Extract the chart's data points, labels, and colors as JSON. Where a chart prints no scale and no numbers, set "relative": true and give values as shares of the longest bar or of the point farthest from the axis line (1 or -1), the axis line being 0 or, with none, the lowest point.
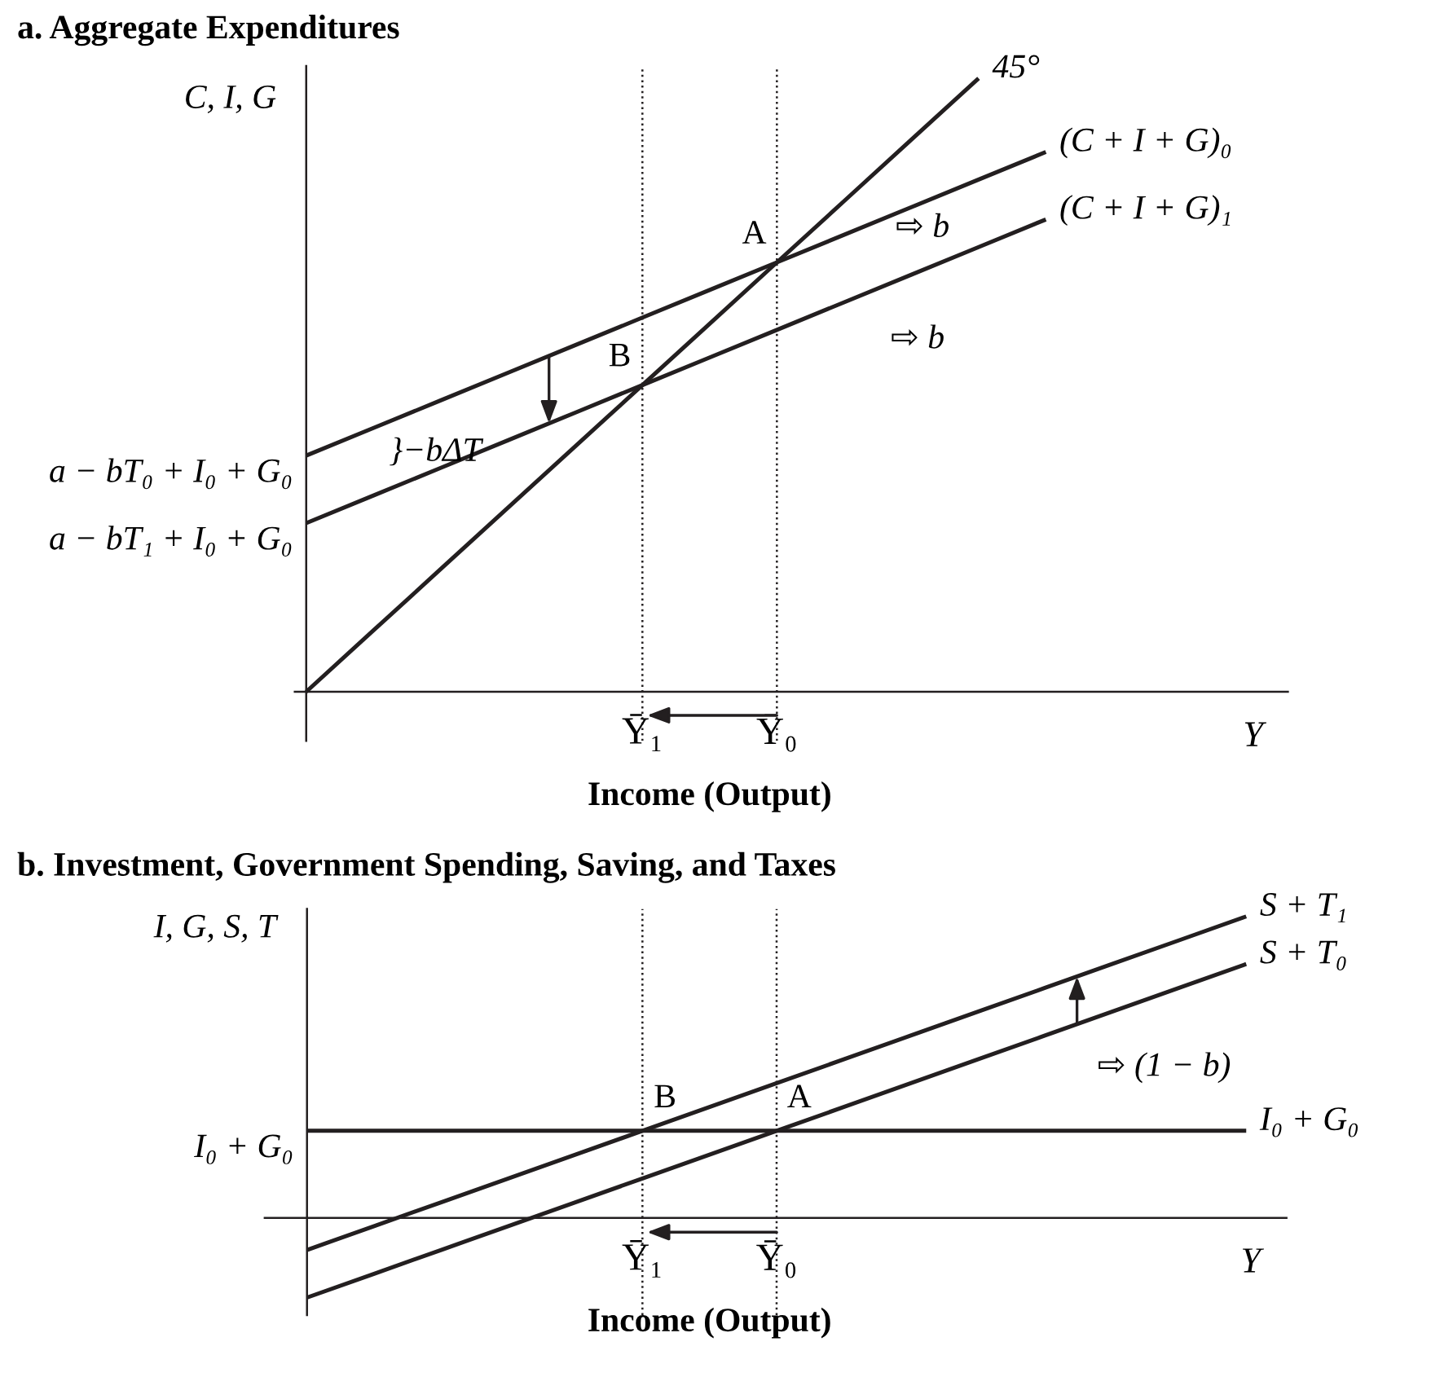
{
  "chart_data": [
    {
      "type": "line",
      "title": "a. Aggregate Expenditures",
      "ylabel": "C, I, G",
      "xlabel": "Income (Output)",
      "relative": true,
      "categories": [
        null,
        null,
        null,
        null,
        null,
        "Ȳ₁",
        null,
        "Ȳ₀",
        null,
        null,
        null,
        null,
        null,
        null,
        null
      ],
      "series": [
        {
          "name": "45°",
          "color": "#231f20",
          "values": [
            0,
            0.1,
            0.2,
            0.3,
            0.4,
            0.5,
            0.6,
            0.7,
            0.8,
            0.9,
            1.0,
            null,
            null,
            null,
            null
          ]
        },
        {
          "name": "(C + I + G)₀",
          "color": "#231f20",
          "values": [
            0.385,
            0.43,
            0.475,
            0.52,
            0.565,
            0.61,
            0.655,
            0.7,
            0.745,
            0.79,
            0.835,
            0.88,
            null,
            null,
            null
          ]
        },
        {
          "name": "(C + I + G)₁",
          "color": "#231f20",
          "values": [
            0.275,
            0.32,
            0.365,
            0.41,
            0.455,
            0.5,
            0.545,
            0.59,
            0.635,
            0.68,
            0.725,
            0.77,
            null,
            null,
            null
          ]
        }
      ],
      "ref_lines": [
        {
          "axis": "x",
          "value": "Ȳ₁",
          "color": "#231f20",
          "line_style": "dotted"
        },
        {
          "axis": "x",
          "value": "Ȳ₀",
          "color": "#231f20",
          "line_style": "dotted"
        }
      ],
      "annotations": [
        "Y",
        "}−bΔT",
        "⇨ b",
        "⇨ b",
        "a − bT₀ + I₀ + G₀",
        "a − bT₁ + I₀ + G₀",
        {
          "text": "A",
          "x": "Ȳ₀",
          "y": 0.7
        },
        {
          "text": "B",
          "x": "Ȳ₁",
          "y": 0.5
        }
      ]
    },
    {
      "type": "line",
      "title": "b. Investment, Government Spending, Saving, and Taxes",
      "ylabel": "I, G, S, T",
      "xlabel": "Income (Output)",
      "relative": true,
      "categories": [
        null,
        null,
        null,
        null,
        null,
        "Ȳ₁",
        null,
        "Ȳ₀",
        null,
        null,
        null,
        null,
        null,
        null,
        null
      ],
      "series": [
        {
          "name": "S + T₁",
          "color": "#231f20",
          "values": [
            -0.106,
            -0.027,
            0.052,
            0.131,
            0.21,
            0.289,
            0.368,
            0.447,
            0.526,
            0.605,
            0.684,
            0.763,
            0.842,
            0.921,
            1.0
          ]
        },
        {
          "name": "S + T₀",
          "color": "#231f20",
          "values": [
            -0.264,
            -0.185,
            -0.106,
            -0.027,
            0.052,
            0.131,
            0.21,
            0.289,
            0.368,
            0.447,
            0.526,
            0.605,
            0.684,
            0.763,
            0.842
          ]
        },
        {
          "name": "I₀ + G₀",
          "color": "#231f20",
          "values": [
            0.289,
            0.289,
            0.289,
            0.289,
            0.289,
            0.289,
            0.289,
            0.289,
            0.289,
            0.289,
            0.289,
            0.289,
            0.289,
            0.289,
            0.289
          ]
        }
      ],
      "ref_lines": [
        {
          "axis": "x",
          "value": "Ȳ₁",
          "color": "#231f20",
          "line_style": "dotted"
        },
        {
          "axis": "x",
          "value": "Ȳ₀",
          "color": "#231f20",
          "line_style": "dotted"
        }
      ],
      "annotations": [
        "Y",
        "⇨ (1 − b)",
        "I₀ + G₀",
        {
          "text": "B",
          "x": "Ȳ₁",
          "y": 0.289
        },
        {
          "text": "A",
          "x": "Ȳ₀",
          "y": 0.289
        }
      ]
    }
  ]
}
